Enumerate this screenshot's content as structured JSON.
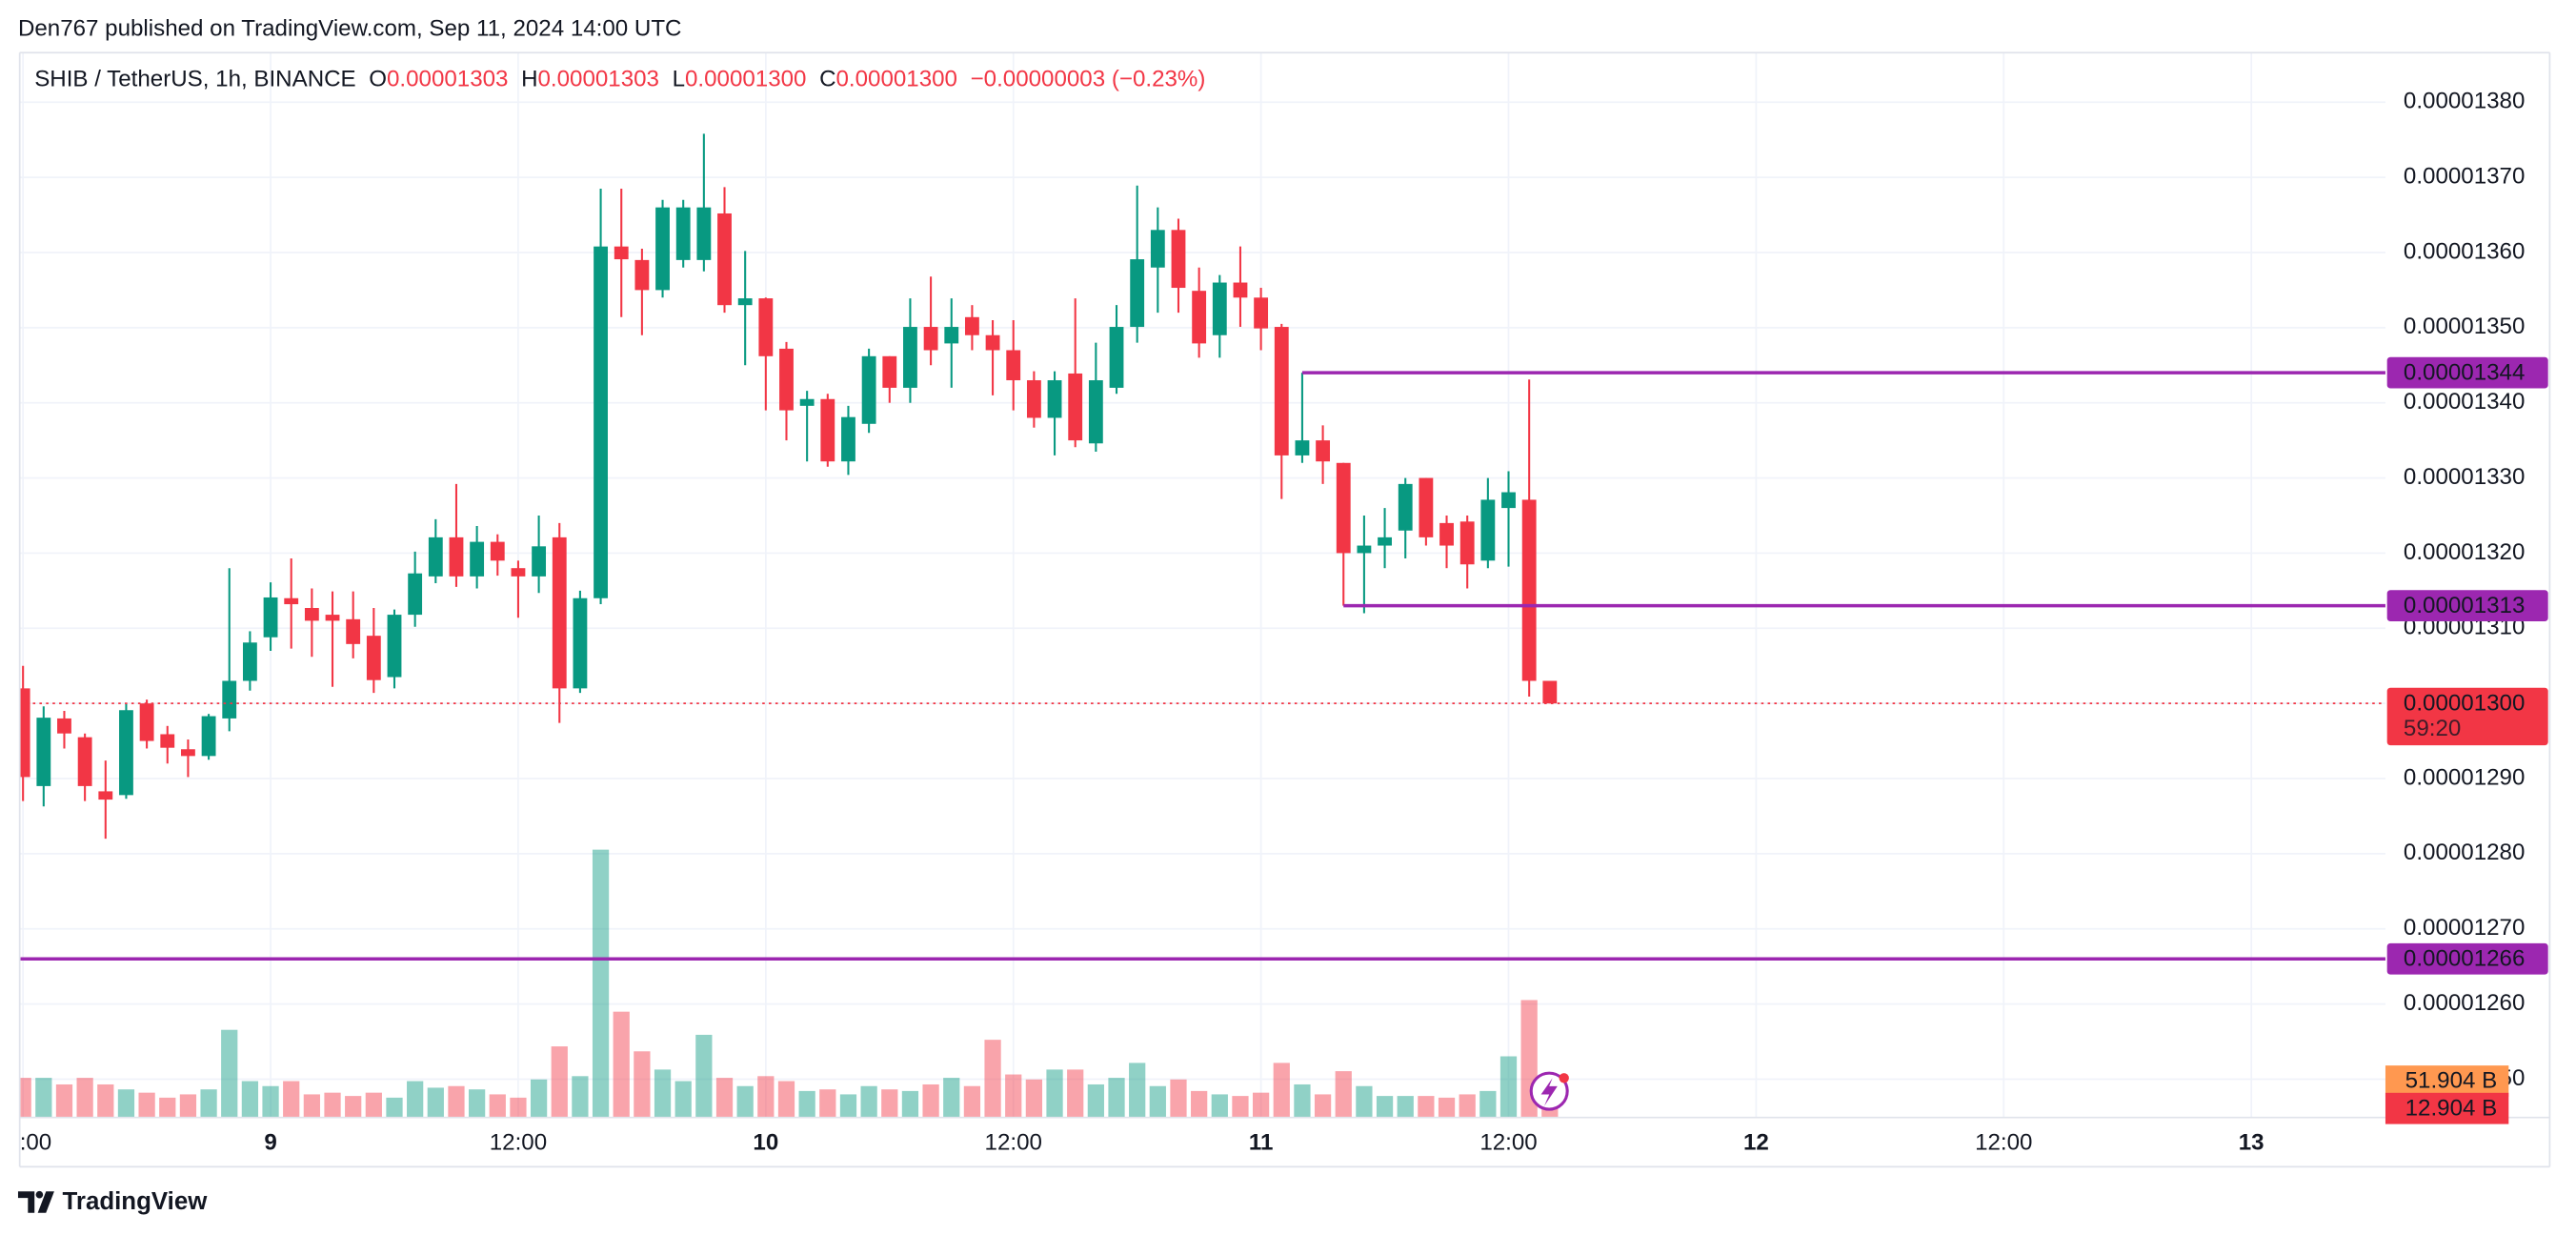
{
  "header": {
    "attribution": "Den767 published on TradingView.com, Sep 11, 2024 14:00 UTC"
  },
  "footer": {
    "brand": "TradingView"
  },
  "chart_data": {
    "type": "candlestick",
    "symbol": "SHIB / TetherUS, 1h, BINANCE",
    "ohlc_legend": [
      {
        "key": "O",
        "value": "0.00001303"
      },
      {
        "key": "H",
        "value": "0.00001303"
      },
      {
        "key": "L",
        "value": "0.00001300"
      },
      {
        "key": "C",
        "value": "0.00001300"
      }
    ],
    "change": "−0.00000003 (−0.23%)",
    "up_color": "#089981",
    "down_color": "#f23645",
    "grid": true,
    "open": [
      1.302e-05,
      1.289e-05,
      1.298e-05,
      1.2955e-05,
      1.2883e-05,
      1.2878e-05,
      1.3e-05,
      1.2959e-05,
      1.2939e-05,
      1.293e-05,
      1.298e-05,
      1.303e-05,
      1.3088e-05,
      1.314e-05,
      1.3127e-05,
      1.3118e-05,
      1.3112e-05,
      1.309e-05,
      1.3035e-05,
      1.3118e-05,
      1.3169e-05,
      1.3221e-05,
      1.3169e-05,
      1.3215e-05,
      1.318e-05,
      1.3169e-05,
      1.3221e-05,
      1.302e-05,
      1.314e-05,
      1.3608e-05,
      1.359e-05,
      1.355e-05,
      1.359e-05,
      1.359e-05,
      1.3652e-05,
      1.353e-05,
      1.3539e-05,
      1.3472e-05,
      1.3396e-05,
      1.3405e-05,
      1.3322e-05,
      1.3372e-05,
      1.3462e-05,
      1.342e-05,
      1.3501e-05,
      1.3479e-05,
      1.3514e-05,
      1.349e-05,
      1.347e-05,
      1.343e-05,
      1.338e-05,
      1.3439e-05,
      1.3346e-05,
      1.342e-05,
      1.3501e-05,
      1.358e-05,
      1.363e-05,
      1.3549e-05,
      1.349e-05,
      1.356e-05,
      1.354e-05,
      1.3501e-05,
      1.333e-05,
      1.335e-05,
      1.332e-05,
      1.32e-05,
      1.321e-05,
      1.323e-05,
      1.33e-05,
      1.324e-05,
      1.3242e-05,
      1.319e-05,
      1.326e-05,
      1.3271e-05,
      1.303e-05
    ],
    "high": [
      1.305e-05,
      1.2996e-05,
      1.299e-05,
      1.296e-05,
      1.2924e-05,
      1.3e-05,
      1.3005e-05,
      1.297e-05,
      1.2952e-05,
      1.2986e-05,
      1.318e-05,
      1.3096e-05,
      1.3161e-05,
      1.3193e-05,
      1.3153e-05,
      1.3149e-05,
      1.3149e-05,
      1.3127e-05,
      1.3125e-05,
      1.3202e-05,
      1.3245e-05,
      1.3292e-05,
      1.3236e-05,
      1.3225e-05,
      1.319e-05,
      1.325e-05,
      1.324e-05,
      1.315e-05,
      1.3685e-05,
      1.3685e-05,
      1.3605e-05,
      1.367e-05,
      1.367e-05,
      1.3758e-05,
      1.3687e-05,
      1.3602e-05,
      1.354e-05,
      1.3481e-05,
      1.3416e-05,
      1.3412e-05,
      1.3396e-05,
      1.3472e-05,
      1.3462e-05,
      1.3539e-05,
      1.3568e-05,
      1.3539e-05,
      1.353e-05,
      1.351e-05,
      1.351e-05,
      1.3442e-05,
      1.3442e-05,
      1.3539e-05,
      1.348e-05,
      1.353e-05,
      1.3689e-05,
      1.366e-05,
      1.3645e-05,
      1.358e-05,
      1.357e-05,
      1.3608e-05,
      1.3553e-05,
      1.3505e-05,
      1.344e-05,
      1.337e-05,
      1.332e-05,
      1.325e-05,
      1.326e-05,
      1.33e-05,
      1.33e-05,
      1.325e-05,
      1.325e-05,
      1.33e-05,
      1.3309e-05,
      1.3431e-05,
      1.303e-05
    ],
    "low": [
      1.287e-05,
      1.2863e-05,
      1.294e-05,
      1.287e-05,
      1.282e-05,
      1.2873e-05,
      1.294e-05,
      1.292e-05,
      1.2902e-05,
      1.2925e-05,
      1.2963e-05,
      1.3017e-05,
      1.307e-05,
      1.3073e-05,
      1.3062e-05,
      1.3022e-05,
      1.306e-05,
      1.3014e-05,
      1.302e-05,
      1.3102e-05,
      1.316e-05,
      1.3155e-05,
      1.3153e-05,
      1.317e-05,
      1.3114e-05,
      1.3147e-05,
      1.2974e-05,
      1.3014e-05,
      1.3132e-05,
      1.3514e-05,
      1.349e-05,
      1.354e-05,
      1.358e-05,
      1.3575e-05,
      1.352e-05,
      1.345e-05,
      1.339e-05,
      1.335e-05,
      1.3322e-05,
      1.3315e-05,
      1.3304e-05,
      1.336e-05,
      1.34e-05,
      1.34e-05,
      1.345e-05,
      1.342e-05,
      1.347e-05,
      1.341e-05,
      1.339e-05,
      1.3367e-05,
      1.333e-05,
      1.3341e-05,
      1.3335e-05,
      1.3412e-05,
      1.348e-05,
      1.352e-05,
      1.352e-05,
      1.346e-05,
      1.346e-05,
      1.3501e-05,
      1.347e-05,
      1.3272e-05,
      1.332e-05,
      1.3292e-05,
      1.313e-05,
      1.312e-05,
      1.318e-05,
      1.3193e-05,
      1.321e-05,
      1.318e-05,
      1.3153e-05,
      1.318e-05,
      1.3182e-05,
      1.3009e-05,
      1.3e-05
    ],
    "close": [
      1.2902e-05,
      1.2981e-05,
      1.296e-05,
      1.289e-05,
      1.2872e-05,
      1.2991e-05,
      1.295e-05,
      1.2941e-05,
      1.293e-05,
      1.2983e-05,
      1.303e-05,
      1.3081e-05,
      1.3141e-05,
      1.3132e-05,
      1.311e-05,
      1.311e-05,
      1.3079e-05,
      1.3031e-05,
      1.3118e-05,
      1.3173e-05,
      1.3221e-05,
      1.3169e-05,
      1.3215e-05,
      1.319e-05,
      1.3169e-05,
      1.3209e-05,
      1.302e-05,
      1.314e-05,
      1.3608e-05,
      1.3591e-05,
      1.355e-05,
      1.366e-05,
      1.366e-05,
      1.366e-05,
      1.353e-05,
      1.3539e-05,
      1.3462e-05,
      1.339e-05,
      1.3405e-05,
      1.3322e-05,
      1.3381e-05,
      1.3462e-05,
      1.342e-05,
      1.3501e-05,
      1.347e-05,
      1.3501e-05,
      1.349e-05,
      1.347e-05,
      1.343e-05,
      1.338e-05,
      1.343e-05,
      1.335e-05,
      1.343e-05,
      1.3501e-05,
      1.3591e-05,
      1.363e-05,
      1.3553e-05,
      1.3479e-05,
      1.356e-05,
      1.354e-05,
      1.3499e-05,
      1.333e-05,
      1.335e-05,
      1.3322e-05,
      1.32e-05,
      1.321e-05,
      1.3221e-05,
      1.3292e-05,
      1.3221e-05,
      1.321e-05,
      1.3185e-05,
      1.3271e-05,
      1.3281e-05,
      1.303e-05,
      1.3e-05
    ],
    "volume": [
      56.6,
      56.6,
      47.2,
      56.6,
      47.2,
      40.1,
      35.4,
      28.3,
      33.0,
      40.1,
      125.1,
      51.9,
      44.8,
      51.9,
      33.0,
      35.4,
      30.7,
      35.4,
      28.3,
      51.9,
      42.5,
      44.8,
      40.1,
      33.0,
      28.3,
      54.3,
      101.5,
      59.0,
      382.3,
      151.0,
      94.4,
      68.4,
      51.9,
      118.0,
      56.6,
      44.8,
      59.0,
      51.9,
      37.8,
      40.1,
      33.0,
      44.8,
      40.1,
      37.8,
      47.2,
      56.6,
      44.8,
      110.9,
      61.4,
      54.3,
      68.4,
      68.4,
      47.2,
      56.6,
      77.9,
      44.8,
      54.3,
      37.8,
      33.0,
      30.7,
      35.4,
      77.9,
      47.2,
      33.0,
      66.1,
      44.8,
      30.7,
      30.7,
      30.7,
      28.3,
      33.0,
      37.8,
      87.3,
      167.6,
      12.9
    ],
    "vlim": [
      0,
      1520
    ],
    "volume_ma_label": {
      "value": 51.904,
      "label": "51.904 B",
      "color": "#ff9850"
    },
    "last_volume_label": {
      "value": 12.904,
      "label": "12.904 B",
      "color": "#f23645"
    },
    "xlim": [
      -0.16,
      114.5
    ],
    "xticks": [
      {
        "value": 0,
        "label": ":00"
      },
      {
        "value": 12,
        "label": "9"
      },
      {
        "value": 24,
        "label": "12:00"
      },
      {
        "value": 36,
        "label": "10"
      },
      {
        "value": 48,
        "label": "12:00"
      },
      {
        "value": 60,
        "label": "11"
      },
      {
        "value": 72,
        "label": "12:00"
      },
      {
        "value": 84,
        "label": "12"
      },
      {
        "value": 96,
        "label": "12:00"
      },
      {
        "value": 108,
        "label": "13"
      }
    ],
    "ylim": [
      1.2449e-05,
      1.3866e-05
    ],
    "yticks": [
      {
        "value": 1.38e-05,
        "label": "0.00001380"
      },
      {
        "value": 1.37e-05,
        "label": "0.00001370"
      },
      {
        "value": 1.36e-05,
        "label": "0.00001360"
      },
      {
        "value": 1.35e-05,
        "label": "0.00001350"
      },
      {
        "value": 1.34e-05,
        "label": "0.00001340"
      },
      {
        "value": 1.33e-05,
        "label": "0.00001330"
      },
      {
        "value": 1.32e-05,
        "label": "0.00001320"
      },
      {
        "value": 1.31e-05,
        "label": "0.00001310"
      },
      {
        "value": 1.3e-05,
        "label": "0.00001300"
      },
      {
        "value": 1.29e-05,
        "label": "0.00001290"
      },
      {
        "value": 1.28e-05,
        "label": "0.00001280"
      },
      {
        "value": 1.27e-05,
        "label": "0.00001270"
      },
      {
        "value": 1.26e-05,
        "label": "0.00001260"
      },
      {
        "value": 1.25e-05,
        "label": "0.00001250"
      }
    ],
    "levels": [
      {
        "value": 1.344e-05,
        "start": 62,
        "color": "#9c27b0"
      },
      {
        "value": 1.313e-05,
        "start": 64,
        "color": "#9c27b0"
      },
      {
        "value": 1.266e-05,
        "start": null,
        "color": "#9c27b0"
      }
    ],
    "last_price": {
      "value": 1.3e-05,
      "label": "0.00001300",
      "countdown": "59:20",
      "color": "#f23645"
    }
  }
}
